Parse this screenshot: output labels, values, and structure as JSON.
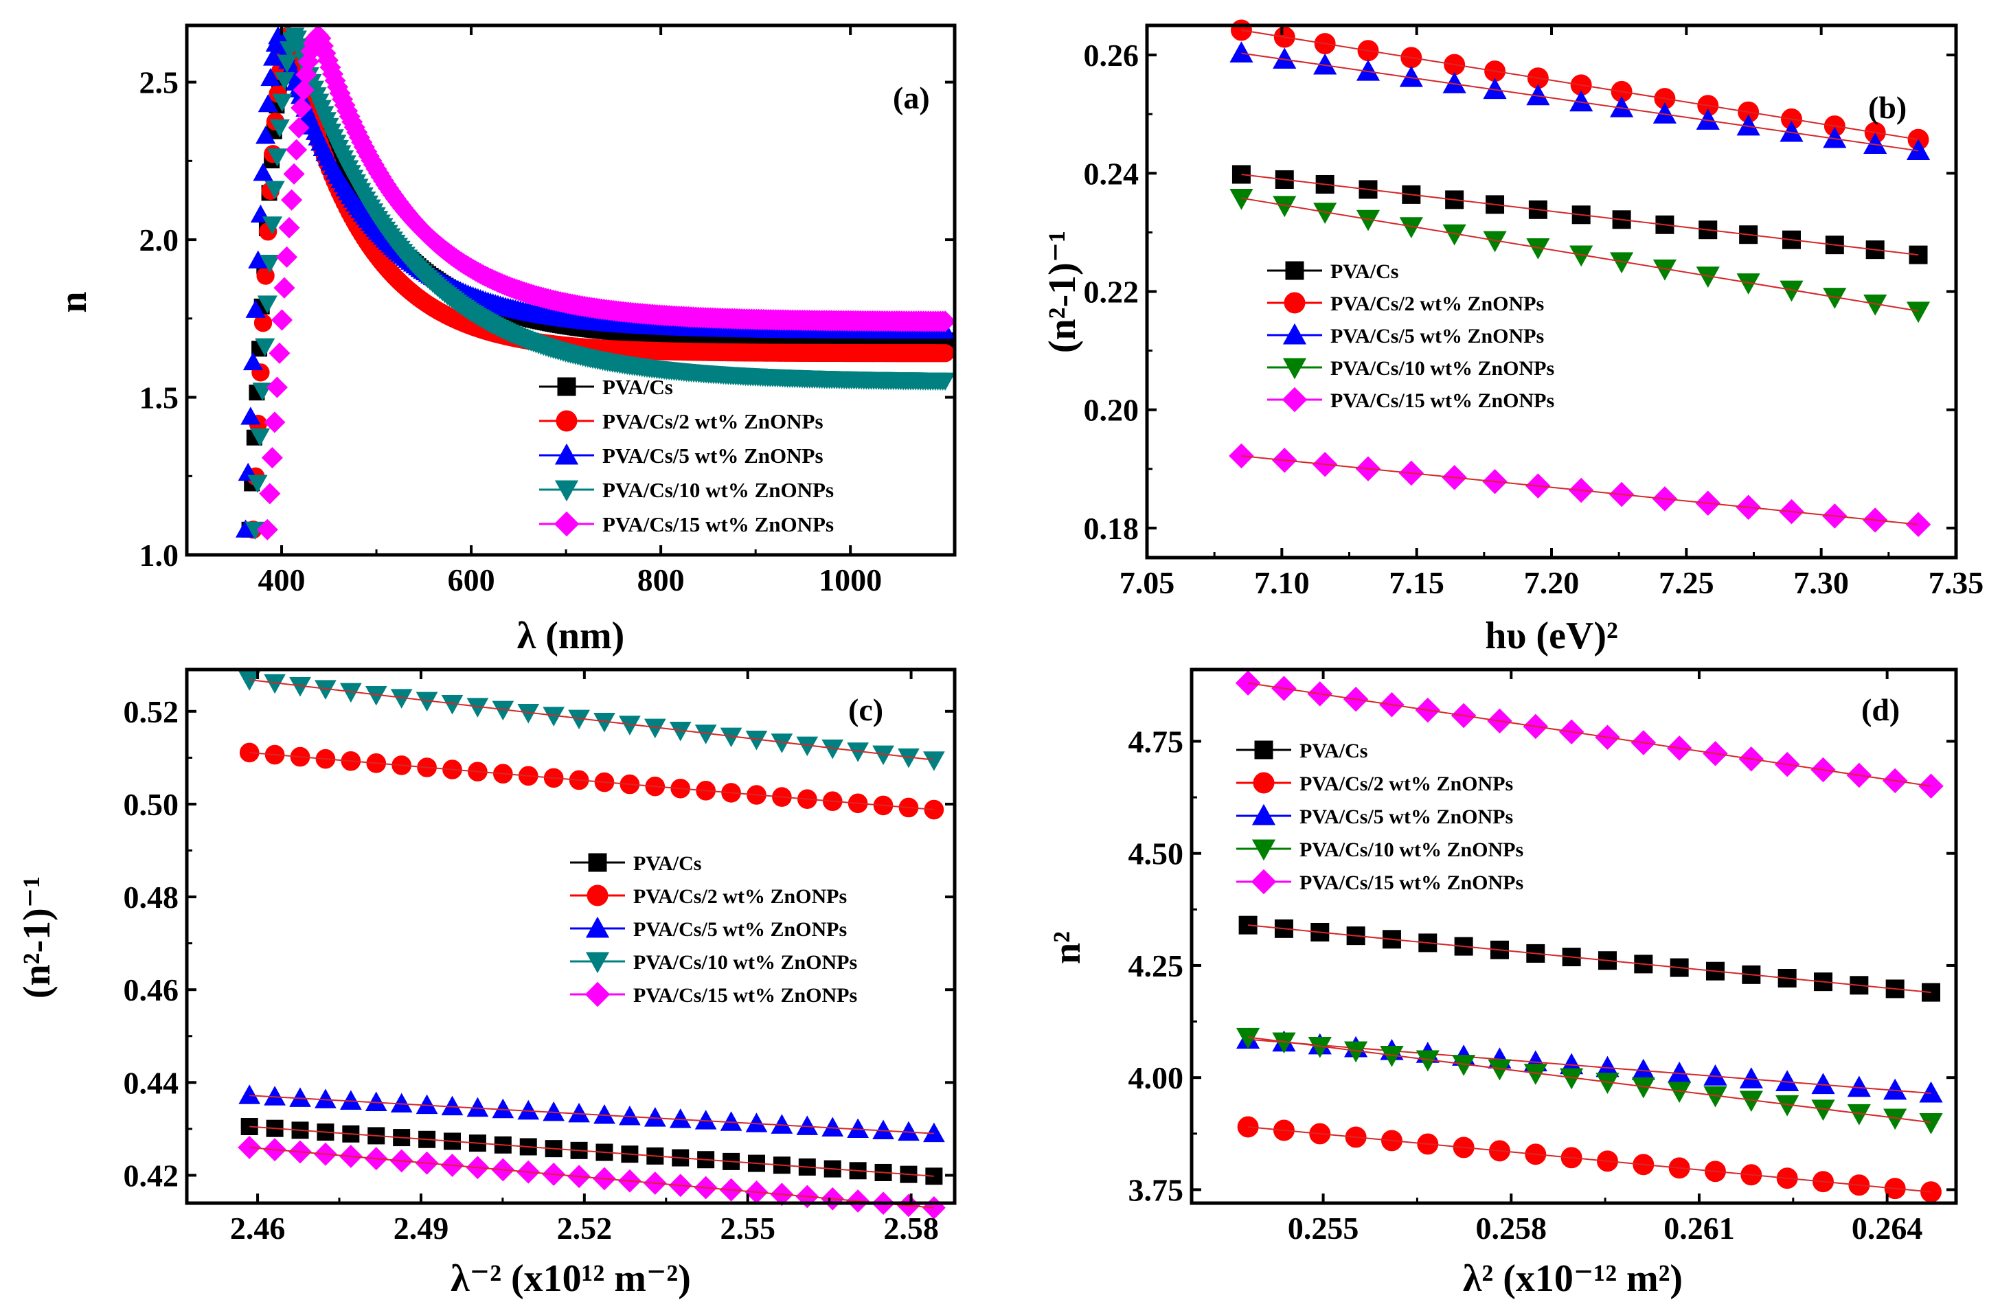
{
  "colors": {
    "black": "#000000",
    "red": "#ff0000",
    "blue": "#0000ff",
    "teal": "#008080",
    "green": "#008000",
    "magenta": "#ff00ff",
    "fit": "#d62728"
  },
  "chart_data": [
    {
      "id": "a",
      "type": "scatter",
      "panel_label": "(a)",
      "xlabel": "λ (nm)",
      "ylabel": "n",
      "xlim": [
        300,
        1110
      ],
      "ylim": [
        1.0,
        2.68
      ],
      "xticks": [
        400,
        600,
        800,
        1000
      ],
      "xticklabels": [
        "400",
        "600",
        "800",
        "1000"
      ],
      "yticks": [
        1.0,
        1.5,
        2.0,
        2.5
      ],
      "yticklabels": [
        "1.0",
        "1.5",
        "2.0",
        "2.5"
      ],
      "legend": [
        "PVA/Cs",
        "PVA/Cs/2 wt% ZnONPs",
        "PVA/Cs/5 wt% ZnONPs",
        "PVA/Cs/10 wt% ZnONPs",
        "PVA/Cs/15 wt% ZnONPs"
      ],
      "series": [
        {
          "name": "PVA/Cs",
          "peak_x": 410,
          "start_x": 366,
          "tail": 1.68,
          "A": 1.05,
          "sigma": 95,
          "marker": "square",
          "color": "black"
        },
        {
          "name": "PVA/Cs/2 wt% ZnONPs",
          "peak_x": 408,
          "start_x": 370,
          "tail": 1.64,
          "A": 1.08,
          "sigma": 78,
          "marker": "circle",
          "color": "red"
        },
        {
          "name": "PVA/Cs/5 wt% ZnONPs",
          "peak_x": 398,
          "start_x": 362,
          "tail": 1.71,
          "A": 1.02,
          "sigma": 95,
          "marker": "triangle-up",
          "color": "blue"
        },
        {
          "name": "PVA/Cs/10 wt% ZnONPs",
          "peak_x": 415,
          "start_x": 372,
          "tail": 1.55,
          "A": 1.15,
          "sigma": 115,
          "marker": "triangle-down",
          "color": "teal"
        },
        {
          "name": "PVA/Cs/15 wt% ZnONPs",
          "peak_x": 440,
          "start_x": 385,
          "tail": 1.74,
          "A": 0.97,
          "sigma": 95,
          "marker": "diamond",
          "color": "magenta"
        }
      ],
      "peak_y": 2.65
    },
    {
      "id": "b",
      "type": "scatter",
      "panel_label": "(b)",
      "xlabel": "hυ (eV)²",
      "ylabel": "(n²-1)⁻¹",
      "xlim": [
        7.05,
        7.35
      ],
      "ylim": [
        0.175,
        0.265
      ],
      "xticks": [
        7.05,
        7.1,
        7.15,
        7.2,
        7.25,
        7.3,
        7.35
      ],
      "xticklabels": [
        "7.05",
        "7.10",
        "7.15",
        "7.20",
        "7.25",
        "7.30",
        "7.35"
      ],
      "yticks": [
        0.18,
        0.2,
        0.22,
        0.24,
        0.26
      ],
      "yticklabels": [
        "0.18",
        "0.20",
        "0.22",
        "0.24",
        "0.26"
      ],
      "x": [
        7.085,
        7.101,
        7.116,
        7.132,
        7.148,
        7.164,
        7.179,
        7.195,
        7.211,
        7.226,
        7.242,
        7.258,
        7.273,
        7.289,
        7.305,
        7.32,
        7.336
      ],
      "legend": [
        "PVA/Cs",
        "PVA/Cs/2 wt% ZnONPs",
        "PVA/Cs/5 wt% ZnONPs",
        "PVA/Cs/10 wt% ZnONPs",
        "PVA/Cs/15 wt% ZnONPs"
      ],
      "series": [
        {
          "name": "PVA/Cs",
          "y0": 0.2398,
          "y1": 0.2262,
          "marker": "square",
          "color": "black"
        },
        {
          "name": "PVA/Cs/2 wt% ZnONPs",
          "y0": 0.2642,
          "y1": 0.2457,
          "marker": "circle",
          "color": "red"
        },
        {
          "name": "PVA/Cs/5 wt% ZnONPs",
          "y0": 0.2603,
          "y1": 0.2438,
          "marker": "triangle-up",
          "color": "blue"
        },
        {
          "name": "PVA/Cs/10 wt% ZnONPs",
          "y0": 0.2358,
          "y1": 0.2167,
          "marker": "triangle-down",
          "color": "green"
        },
        {
          "name": "PVA/Cs/15 wt% ZnONPs",
          "y0": 0.1922,
          "y1": 0.1806,
          "marker": "diamond",
          "color": "magenta"
        }
      ]
    },
    {
      "id": "c",
      "type": "scatter",
      "panel_label": "(c)",
      "xlabel": "λ⁻² (x10¹² m⁻²)",
      "ylabel": "(n²-1)⁻¹",
      "xlim": [
        2.447,
        2.588
      ],
      "ylim": [
        0.414,
        0.529
      ],
      "xticks": [
        2.46,
        2.49,
        2.52,
        2.55,
        2.58
      ],
      "xticklabels": [
        "2.46",
        "2.49",
        "2.52",
        "2.55",
        "2.58"
      ],
      "yticks": [
        0.42,
        0.44,
        0.46,
        0.48,
        0.5,
        0.52
      ],
      "yticklabels": [
        "0.42",
        "0.44",
        "0.46",
        "0.48",
        "0.50",
        "0.52"
      ],
      "x_start": 2.4585,
      "x_end": 2.5842,
      "n_points": 28,
      "legend": [
        "PVA/Cs",
        "PVA/Cs/2 wt% ZnONPs",
        "PVA/Cs/5 wt% ZnONPs",
        "PVA/Cs/10 wt% ZnONPs",
        "PVA/Cs/15 wt% ZnONPs"
      ],
      "series": [
        {
          "name": "PVA/Cs",
          "y0": 0.4305,
          "y1": 0.4198,
          "marker": "square",
          "color": "black"
        },
        {
          "name": "PVA/Cs/2 wt% ZnONPs",
          "y0": 0.5111,
          "y1": 0.4988,
          "marker": "circle",
          "color": "red"
        },
        {
          "name": "PVA/Cs/5 wt% ZnONPs",
          "y0": 0.4372,
          "y1": 0.429,
          "marker": "triangle-up",
          "color": "blue"
        },
        {
          "name": "PVA/Cs/10 wt% ZnONPs",
          "y0": 0.5268,
          "y1": 0.5095,
          "marker": "triangle-down",
          "color": "teal"
        },
        {
          "name": "PVA/Cs/15 wt% ZnONPs",
          "y0": 0.426,
          "y1": 0.413,
          "marker": "diamond",
          "color": "magenta"
        }
      ]
    },
    {
      "id": "d",
      "type": "scatter",
      "panel_label": "(d)",
      "xlabel": "λ² (x10⁻¹² m²)",
      "ylabel": "n²",
      "xlim": [
        0.2529,
        0.2651
      ],
      "ylim": [
        3.72,
        4.91
      ],
      "xticks": [
        0.255,
        0.258,
        0.261,
        0.264
      ],
      "xticklabels": [
        "0.255",
        "0.258",
        "0.261",
        "0.264"
      ],
      "yticks": [
        3.75,
        4.0,
        4.25,
        4.5,
        4.75
      ],
      "yticklabels": [
        "3.75",
        "4.00",
        "4.25",
        "4.50",
        "4.75"
      ],
      "x_start": 0.2538,
      "x_end": 0.2647,
      "n_points": 20,
      "legend": [
        "PVA/Cs",
        "PVA/Cs/2 wt% ZnONPs",
        "PVA/Cs/5 wt% ZnONPs",
        "PVA/Cs/10 wt% ZnONPs",
        "PVA/Cs/15 wt% ZnONPs"
      ],
      "series": [
        {
          "name": "PVA/Cs",
          "y0": 4.34,
          "y1": 4.19,
          "marker": "square",
          "color": "black"
        },
        {
          "name": "PVA/Cs/2 wt% ZnONPs",
          "y0": 3.89,
          "y1": 3.745,
          "marker": "circle",
          "color": "red"
        },
        {
          "name": "PVA/Cs/5 wt% ZnONPs",
          "y0": 4.085,
          "y1": 3.965,
          "marker": "triangle-up",
          "color": "blue"
        },
        {
          "name": "PVA/Cs/10 wt% ZnONPs",
          "y0": 4.09,
          "y1": 3.9,
          "marker": "triangle-down",
          "color": "green"
        },
        {
          "name": "PVA/Cs/15 wt% ZnONPs",
          "y0": 4.88,
          "y1": 4.65,
          "marker": "diamond",
          "color": "magenta"
        }
      ]
    }
  ]
}
